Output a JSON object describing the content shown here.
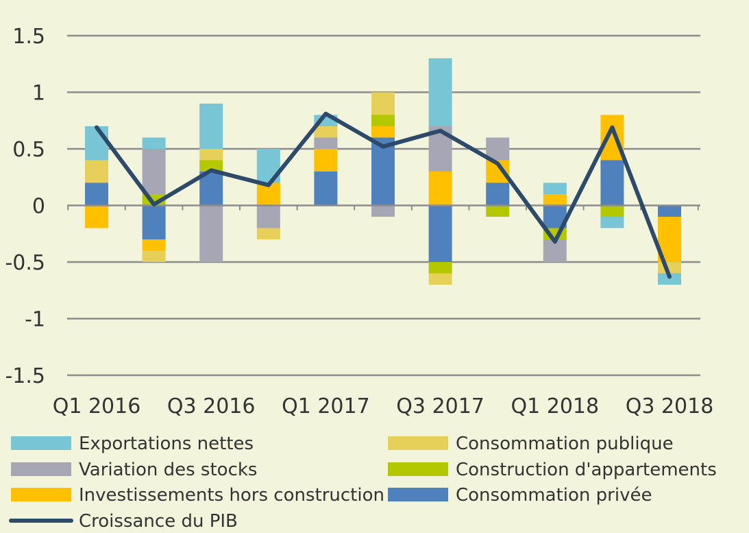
{
  "chart_data": {
    "type": "bar",
    "stacked": true,
    "categories": [
      "Q1 2016",
      "Q2 2016",
      "Q3 2016",
      "Q4 2016",
      "Q1 2017",
      "Q2 2017",
      "Q3 2017",
      "Q4 2017",
      "Q1 2018",
      "Q2 2018",
      "Q3 2018"
    ],
    "x_tick_labels": [
      "Q1 2016",
      "Q3 2016",
      "Q1 2017",
      "Q3 2017",
      "Q1 2018",
      "Q3 2018"
    ],
    "ylim": [
      -1.5,
      1.5
    ],
    "y_ticks": [
      {
        "value": 1.5,
        "label": "1.5"
      },
      {
        "value": 1,
        "label": "1"
      },
      {
        "value": 0.5,
        "label": "0.5"
      },
      {
        "value": 0,
        "label": "0"
      },
      {
        "value": -0.5,
        "label": "-0.5"
      },
      {
        "value": -1,
        "label": "-1"
      },
      {
        "value": -1.5,
        "label": "-1.5"
      }
    ],
    "grid": true,
    "legend_position": "bottom",
    "series": [
      {
        "name": "Consommation privée",
        "color": "#4f81bd",
        "values": [
          0.2,
          -0.3,
          0.3,
          0.0,
          0.3,
          0.6,
          -0.5,
          0.2,
          -0.2,
          0.4,
          -0.1
        ]
      },
      {
        "name": "Investissements hors construction",
        "color": "#ffc000",
        "values": [
          -0.2,
          -0.1,
          0.0,
          0.2,
          0.2,
          0.1,
          0.3,
          0.2,
          0.1,
          0.4,
          -0.4
        ]
      },
      {
        "name": "Construction d'appartements",
        "color": "#b4c800",
        "values": [
          0.0,
          0.1,
          0.1,
          0.0,
          0.0,
          0.1,
          -0.1,
          -0.1,
          -0.1,
          -0.1,
          0.0
        ]
      },
      {
        "name": "Variation des stocks",
        "color": "#a6a6b4",
        "values": [
          0.0,
          0.4,
          -0.5,
          -0.2,
          0.1,
          -0.1,
          0.4,
          0.2,
          -0.2,
          0.0,
          0.0
        ]
      },
      {
        "name": "Consommation publique",
        "color": "#e6d05a",
        "values": [
          0.2,
          -0.1,
          0.1,
          -0.1,
          0.1,
          0.2,
          -0.1,
          0.0,
          0.0,
          0.0,
          -0.1
        ]
      },
      {
        "name": "Exportations nettes",
        "color": "#78c5d6",
        "values": [
          0.3,
          0.1,
          0.4,
          0.3,
          0.1,
          0.0,
          0.6,
          0.0,
          0.1,
          -0.1,
          -0.1
        ]
      }
    ],
    "line": {
      "name": "Croissance du PIB",
      "color": "#2e4a6b",
      "values": [
        0.69,
        0.01,
        0.31,
        0.18,
        0.81,
        0.52,
        0.66,
        0.37,
        -0.32,
        0.69,
        -0.63
      ]
    },
    "legend": [
      {
        "name": "Exportations nettes",
        "color": "#78c5d6",
        "kind": "box"
      },
      {
        "name": "Consommation publique",
        "color": "#e6d05a",
        "kind": "box"
      },
      {
        "name": "Variation des stocks",
        "color": "#a6a6b4",
        "kind": "box"
      },
      {
        "name": "Construction d'appartements",
        "color": "#b4c800",
        "kind": "box"
      },
      {
        "name": "Investissements hors construction",
        "color": "#ffc000",
        "kind": "box"
      },
      {
        "name": "Consommation privée",
        "color": "#4f81bd",
        "kind": "box"
      },
      {
        "name": "Croissance du PIB",
        "color": "#2e4a6b",
        "kind": "line"
      }
    ],
    "colors": {
      "background": "#f2f5dc",
      "grid": "#8c8c8c",
      "text": "#333333"
    }
  }
}
